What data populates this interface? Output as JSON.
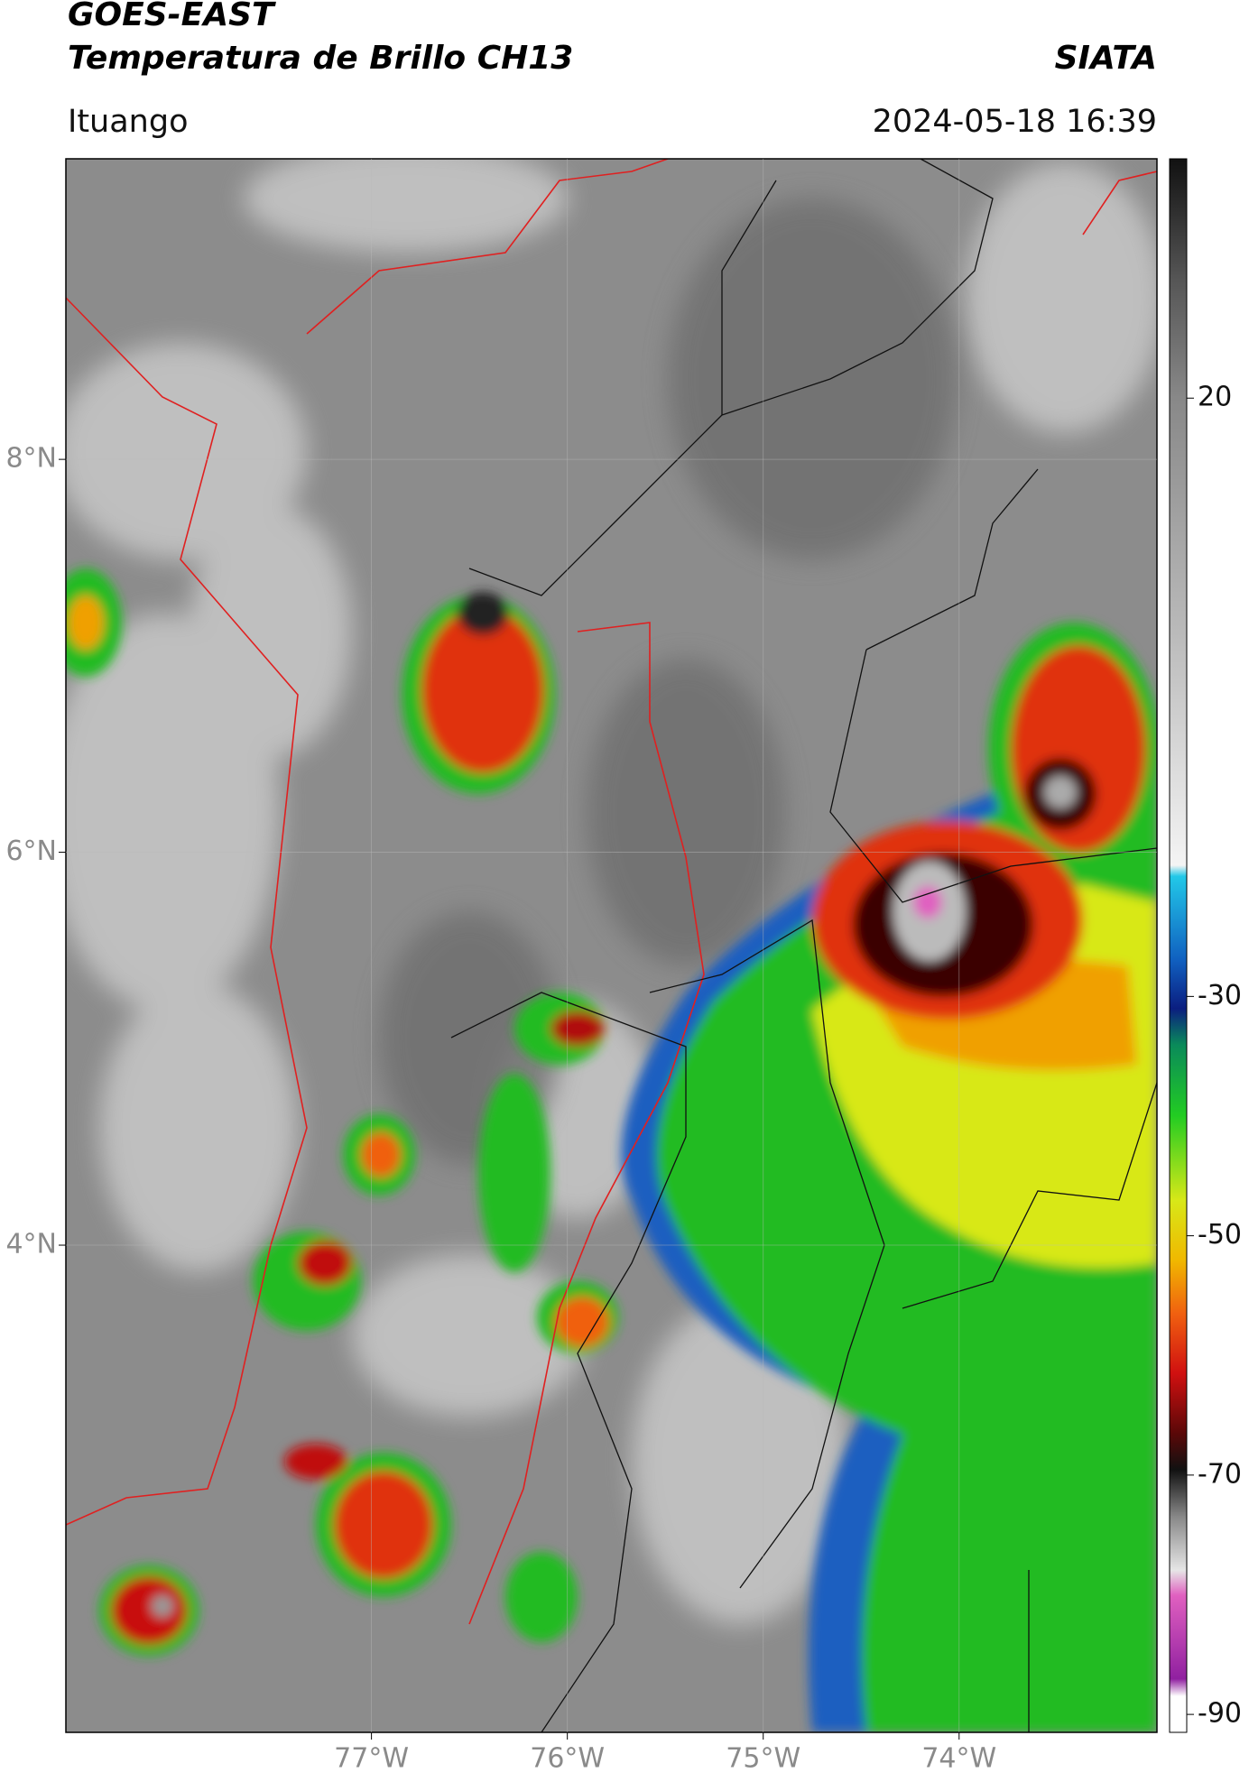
{
  "header": {
    "title": "GOES-EAST",
    "subtitle": "Temperatura de Brillo CH13",
    "brand": "SIATA",
    "location": "Ituango",
    "timestamp": "2024-05-18 16:39"
  },
  "map": {
    "latlim": [
      1.52,
      9.53
    ],
    "lonlim": [
      -78.56,
      -72.99
    ],
    "grid": true,
    "lat_ticks": [
      {
        "value": 8,
        "label": "8°N"
      },
      {
        "value": 6,
        "label": "6°N"
      },
      {
        "value": 4,
        "label": "4°N"
      }
    ],
    "lon_ticks": [
      {
        "value": -77,
        "label": "77°W"
      },
      {
        "value": -76,
        "label": "76°W"
      },
      {
        "value": -75,
        "label": "75°W"
      },
      {
        "value": -74,
        "label": "74°W"
      }
    ]
  },
  "colorbar": {
    "lim": [
      -91.5,
      40
    ],
    "ticks": [
      20,
      -30,
      -50,
      -70,
      -90
    ]
  }
}
